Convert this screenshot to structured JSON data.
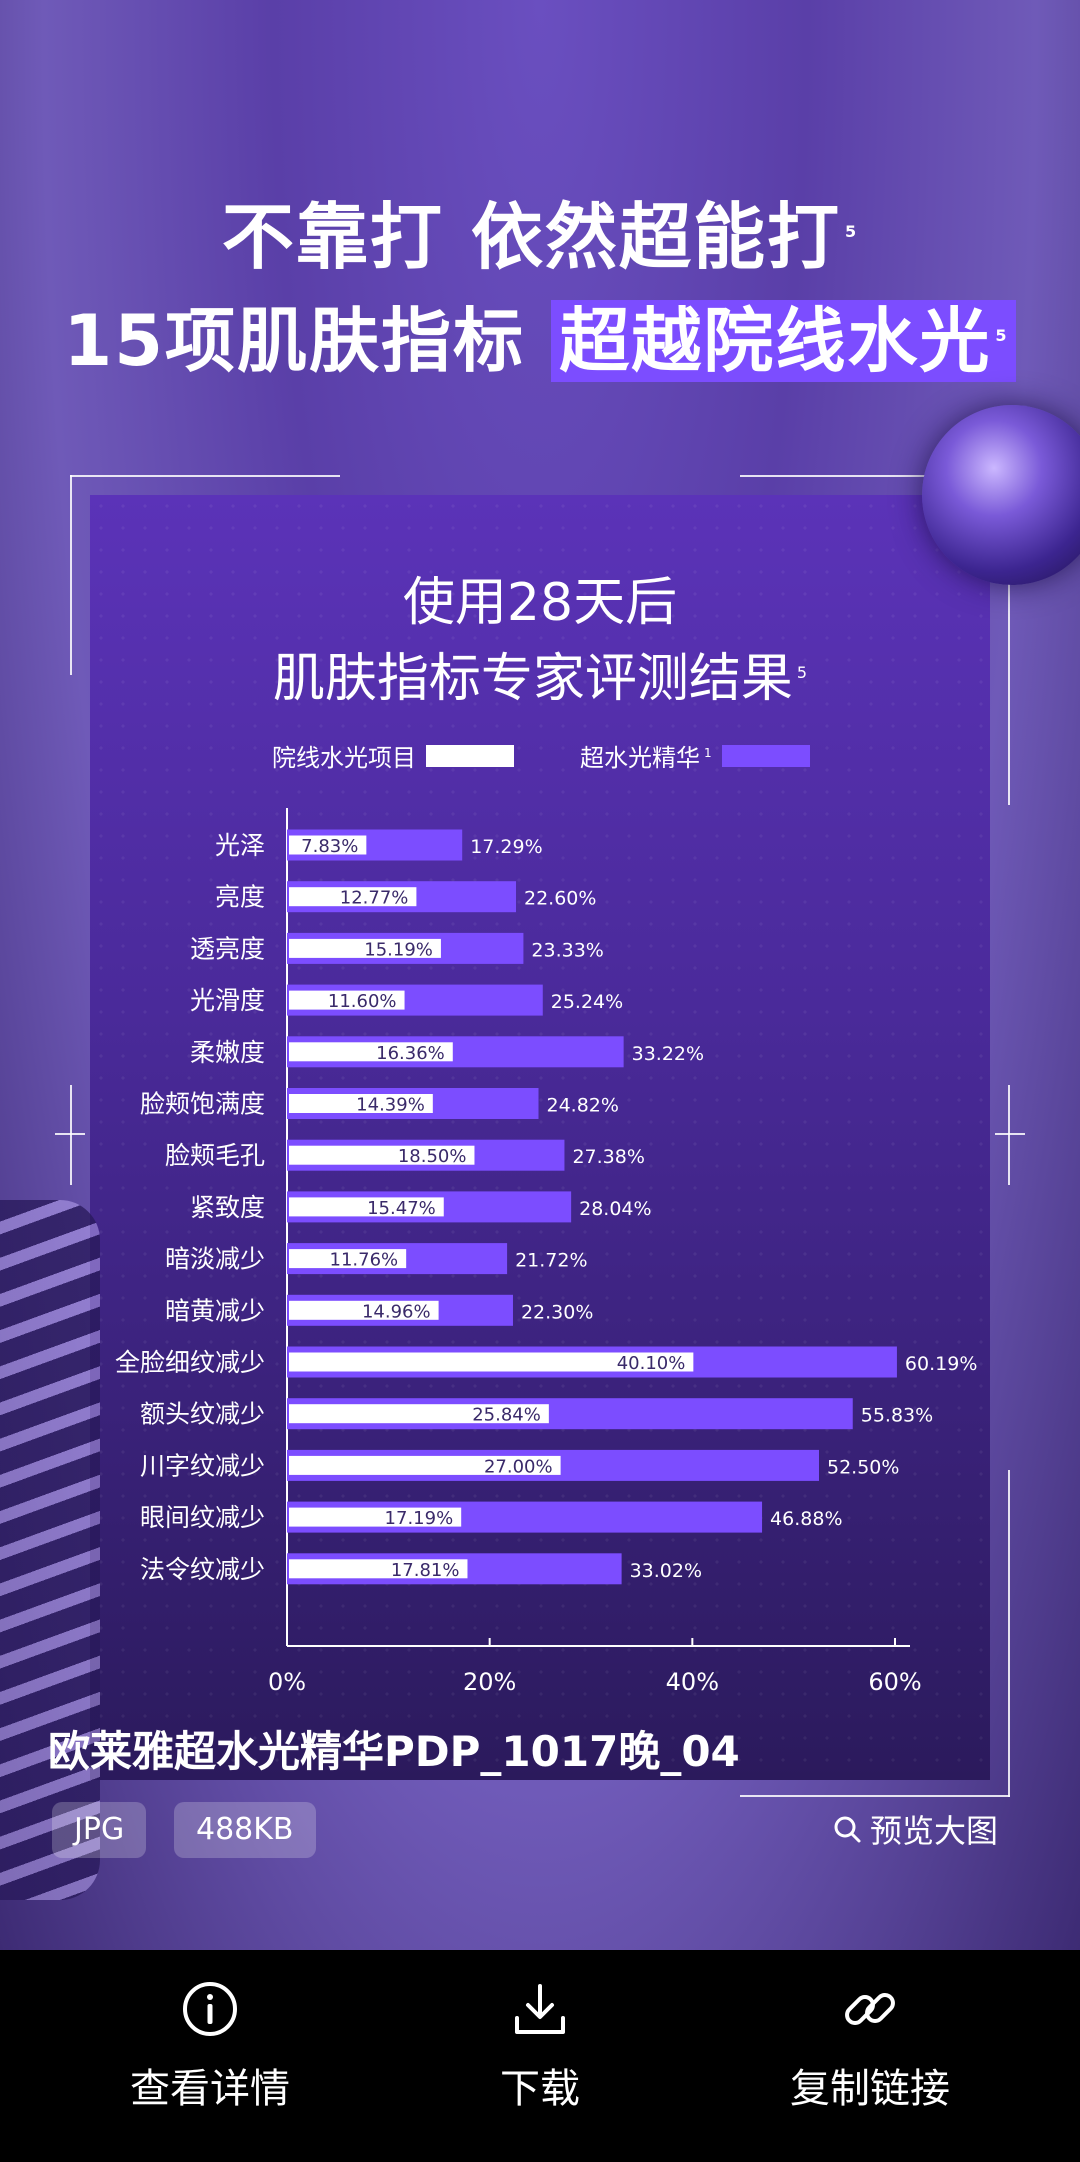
{
  "headline": {
    "line1": "不靠打 依然超能打",
    "line1_sup": "5",
    "line2_prefix": "15项肌肤指标 ",
    "line2_highlight": "超越院线水光",
    "line2_sup": "5"
  },
  "panel": {
    "title1": "使用28天后",
    "title2": "肌肤指标专家评测结果",
    "title2_sup": "5"
  },
  "chart_data": {
    "type": "bar",
    "orientation": "horizontal",
    "categories": [
      "光泽",
      "亮度",
      "透亮度",
      "光滑度",
      "柔嫩度",
      "脸颊饱满度",
      "脸颊毛孔",
      "紧致度",
      "暗淡减少",
      "暗黄减少",
      "全脸细纹减少",
      "额头纹减少",
      "川字纹减少",
      "眼间纹减少",
      "法令纹减少"
    ],
    "series": [
      {
        "name": "院线水光项目",
        "color": "#ffffff",
        "values": [
          7.83,
          12.77,
          15.19,
          11.6,
          16.36,
          14.39,
          18.5,
          15.47,
          11.76,
          14.96,
          40.1,
          25.84,
          27.0,
          17.19,
          17.81
        ],
        "labels": [
          "7.83%",
          "12.77%",
          "15.19%",
          "11.60%",
          "16.36%",
          "14.39%",
          "18.50%",
          "15.47%",
          "11.76%",
          "14.96%",
          "40.10%",
          "25.84%",
          "27.00%",
          "17.19%",
          "17.81%"
        ]
      },
      {
        "name": "超水光精华",
        "name_sup": "1",
        "color": "#7c4dff",
        "values": [
          17.29,
          22.6,
          23.33,
          25.24,
          33.22,
          24.82,
          27.38,
          28.04,
          21.72,
          22.3,
          60.19,
          55.83,
          52.5,
          46.88,
          33.02
        ],
        "labels": [
          "17.29%",
          "22.60%",
          "23.33%",
          "25.24%",
          "33.22%",
          "24.82%",
          "27.38%",
          "28.04%",
          "21.72%",
          "22.30%",
          "60.19%",
          "55.83%",
          "52.50%",
          "46.88%",
          "33.02%"
        ]
      }
    ],
    "xticks": [
      "0%",
      "20%",
      "40%",
      "60%"
    ],
    "xlim": [
      0,
      60
    ],
    "legend_position": "top"
  },
  "caption": "欧莱雅超水光精华PDP_1017晚_04",
  "tags": [
    "JPG",
    "488KB"
  ],
  "preview_label": "预览大图",
  "actions": [
    {
      "icon": "info-icon",
      "label": "查看详情"
    },
    {
      "icon": "download-icon",
      "label": "下载"
    },
    {
      "icon": "link-icon",
      "label": "复制链接"
    }
  ]
}
